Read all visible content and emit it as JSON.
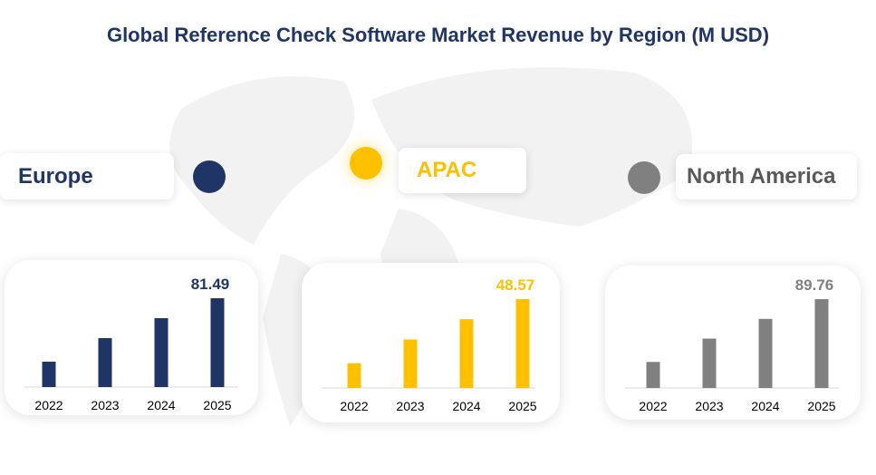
{
  "title": "Global Reference Check Software Market Revenue by Region (M USD)",
  "chart_data": [
    {
      "type": "bar",
      "region": "Europe",
      "color": "#1f3566",
      "categories": [
        "2022",
        "2023",
        "2024",
        "2025"
      ],
      "values": [
        23.3,
        44.9,
        63.2,
        81.49
      ],
      "data_label": "81.49"
    },
    {
      "type": "bar",
      "region": "APAC",
      "color": "#ffc000",
      "categories": [
        "2022",
        "2023",
        "2024",
        "2025"
      ],
      "values": [
        13.5,
        26.5,
        37.6,
        48.57
      ],
      "data_label": "48.57"
    },
    {
      "type": "bar",
      "region": "North America",
      "color": "#808080",
      "categories": [
        "2022",
        "2023",
        "2024",
        "2025"
      ],
      "values": [
        26.3,
        49.9,
        69.8,
        89.76
      ],
      "data_label": "89.76"
    }
  ]
}
